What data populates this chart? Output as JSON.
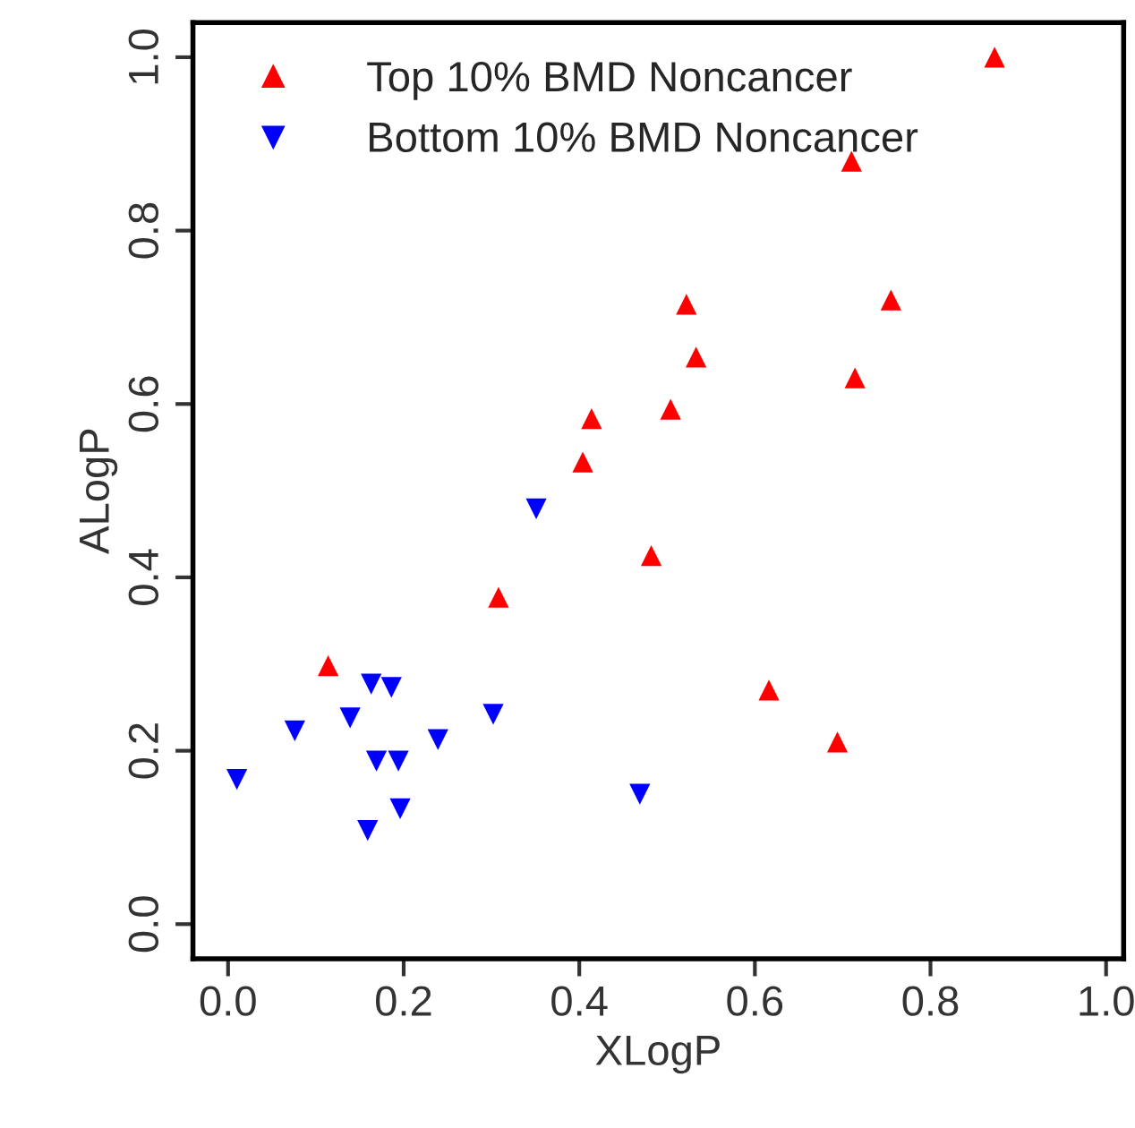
{
  "chart_data": {
    "type": "scatter",
    "xlabel": "XLogP",
    "ylabel": "ALogP",
    "xlim": [
      -0.04,
      1.02
    ],
    "ylim": [
      -0.04,
      1.04
    ],
    "xticks": [
      {
        "value": 0,
        "label": "0.0"
      },
      0.2,
      0.4,
      0.6,
      0.8,
      {
        "value": 1,
        "label": "1.0"
      }
    ],
    "yticks": [
      {
        "value": 0,
        "label": "0.0"
      },
      0.2,
      0.4,
      0.6,
      0.8,
      {
        "value": 1,
        "label": "1.0"
      }
    ],
    "grid": false,
    "legend": "top left",
    "series": [
      {
        "name": "Top 10% BMD Noncancer",
        "color": "#ff0000",
        "marker": "triangle",
        "x": [
          0.873,
          0.71,
          0.755,
          0.714,
          0.616,
          0.694,
          0.522,
          0.533,
          0.414,
          0.504,
          0.404,
          0.482,
          0.308,
          0.114
        ],
        "values": [
          1.0,
          0.88,
          0.72,
          0.63,
          0.27,
          0.21,
          0.715,
          0.654,
          0.583,
          0.594,
          0.533,
          0.425,
          0.377,
          0.298
        ]
      },
      {
        "name": "Bottom 10% BMD Noncancer",
        "color": "#0000ff",
        "marker": "triangle_down",
        "x": [
          0.351,
          0.302,
          0.469,
          0.01,
          0.076,
          0.139,
          0.169,
          0.194,
          0.196,
          0.159,
          0.239,
          0.186,
          0.163
        ],
        "values": [
          0.479,
          0.242,
          0.15,
          0.167,
          0.223,
          0.238,
          0.188,
          0.188,
          0.133,
          0.108,
          0.213,
          0.273,
          0.277
        ]
      }
    ]
  }
}
